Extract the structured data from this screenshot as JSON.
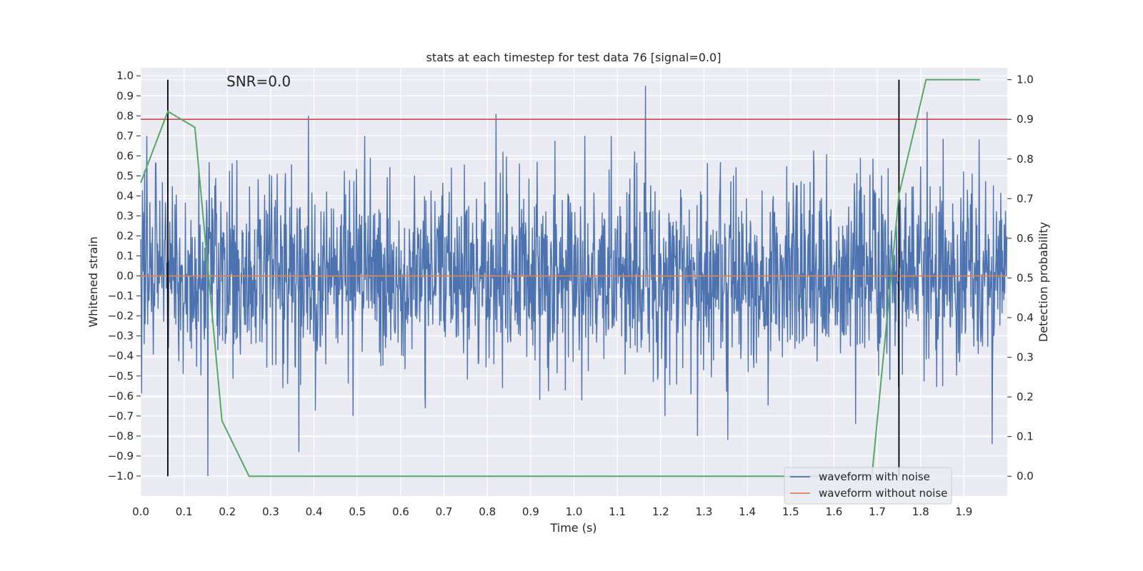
{
  "chart_data": {
    "type": "line",
    "title": "stats at each timestep for test data 76 [signal=0.0]",
    "xlabel": "Time (s)",
    "ylabel": "Whitened strain",
    "y2label": "Detection probability",
    "annotation": "SNR=0.0",
    "xlim": [
      0.0,
      2.0
    ],
    "ylim": [
      -1.1,
      1.04
    ],
    "y2lim": [
      -0.05,
      1.03
    ],
    "grid": true,
    "legend_position": "lower-right",
    "x_ticks": [
      "0.0",
      "0.1",
      "0.2",
      "0.3",
      "0.4",
      "0.5",
      "0.6",
      "0.7",
      "0.8",
      "0.9",
      "1.0",
      "1.1",
      "1.2",
      "1.3",
      "1.4",
      "1.5",
      "1.6",
      "1.7",
      "1.8",
      "1.9"
    ],
    "y_ticks": [
      "−1.0",
      "−0.9",
      "−0.8",
      "−0.7",
      "−0.6",
      "−0.5",
      "−0.4",
      "−0.3",
      "−0.2",
      "−0.1",
      "0.0",
      "0.1",
      "0.2",
      "0.3",
      "0.4",
      "0.5",
      "0.6",
      "0.7",
      "0.8",
      "0.9",
      "1.0"
    ],
    "y2_ticks": [
      "0.0",
      "0.1",
      "0.2",
      "0.3",
      "0.4",
      "0.5",
      "0.6",
      "0.7",
      "0.8",
      "0.9",
      "1.0"
    ],
    "series": [
      {
        "name": "waveform with noise",
        "axis": "left",
        "color": "#4c72b0",
        "sample_rate_hz": 1000,
        "duration_s": 2.0,
        "approx_std": 0.24,
        "peaks": [
          {
            "x": 0.387,
            "y": 0.8
          },
          {
            "x": 0.82,
            "y": 0.81
          },
          {
            "x": 1.165,
            "y": 0.95
          },
          {
            "x": 1.815,
            "y": 0.82
          },
          {
            "x": 0.155,
            "y": -1.0
          },
          {
            "x": 0.365,
            "y": -0.88
          },
          {
            "x": 1.285,
            "y": -0.8
          },
          {
            "x": 1.355,
            "y": -0.82
          },
          {
            "x": 1.965,
            "y": -0.84
          },
          {
            "x": 1.65,
            "y": -0.74
          }
        ]
      },
      {
        "name": "waveform without noise",
        "axis": "left",
        "color": "#dd8452",
        "x": [
          0.0,
          2.0
        ],
        "y": [
          0.0,
          0.0
        ]
      },
      {
        "axis": "right",
        "color": "#55a868",
        "x": [
          0.0,
          0.0625,
          0.125,
          0.1875,
          0.25,
          0.3125,
          0.375,
          0.4375,
          0.5,
          0.5625,
          0.625,
          0.6875,
          0.75,
          0.8125,
          0.875,
          0.9375,
          1.0,
          1.0625,
          1.125,
          1.1875,
          1.25,
          1.3125,
          1.375,
          1.4375,
          1.5,
          1.5625,
          1.625,
          1.6875,
          1.75,
          1.8125,
          1.875,
          1.9375
        ],
        "y": [
          0.74,
          0.92,
          0.88,
          0.14,
          0.0,
          0.0,
          0.0,
          0.0,
          0.0,
          0.0,
          0.0,
          0.0,
          0.0,
          0.0,
          0.0,
          0.0,
          0.0,
          0.0,
          0.0,
          0.0,
          0.0,
          0.0,
          0.0,
          0.0,
          0.0,
          0.0,
          0.0,
          0.0,
          0.71,
          1.0,
          1.0,
          1.0
        ]
      }
    ],
    "hlines": [
      {
        "axis": "right",
        "y": 0.9,
        "color": "#c44e52"
      }
    ],
    "vlines": [
      {
        "x": 0.0625,
        "color": "#000000",
        "y2_range": [
          0.0,
          1.0
        ]
      },
      {
        "x": 1.75,
        "color": "#000000",
        "y2_range": [
          0.0,
          1.0
        ]
      }
    ]
  }
}
